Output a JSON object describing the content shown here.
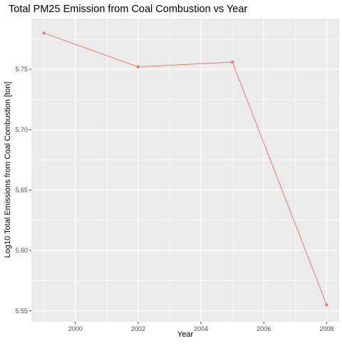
{
  "chart_data": {
    "type": "line",
    "title": "Total PM25 Emission from Coal Combustion vs Year",
    "xlabel": "Year",
    "ylabel": "Log10 Total Emissions from Coal Combustion [ton]",
    "x": [
      1999,
      2002,
      2005,
      2008
    ],
    "series": [
      {
        "values": [
          5.78,
          5.752,
          5.756,
          5.555
        ],
        "color": "#F8766D"
      }
    ],
    "xlim": [
      1998.6,
      2008.4
    ],
    "ylim": [
      5.541,
      5.792
    ],
    "x_ticks": [
      2000,
      2002,
      2004,
      2006,
      2008
    ],
    "y_ticks": [
      5.55,
      5.6,
      5.65,
      5.7,
      5.75
    ],
    "x_tick_labels": [
      "2000",
      "2002",
      "2004",
      "2006",
      "2008"
    ],
    "y_tick_labels": [
      "5.55",
      "5.60",
      "5.65",
      "5.70",
      "5.75"
    ],
    "grid": true,
    "panel_background": "#EBEBEB",
    "grid_color": "#FFFFFF",
    "text_color": "#4D4D4D",
    "legend": "none"
  }
}
